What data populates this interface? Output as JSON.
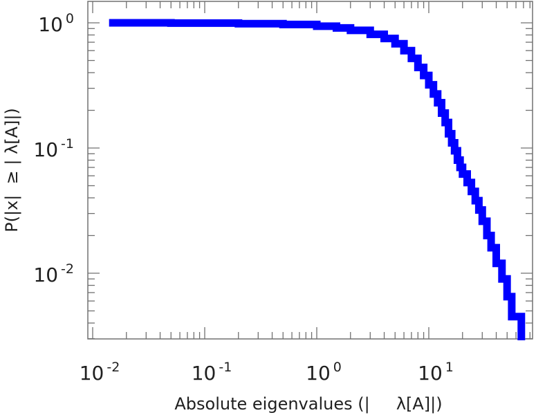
{
  "chart_data": {
    "type": "line",
    "xlabel": "Absolute eigenvalues (|     λ[A]|)",
    "ylabel": "P(|x|  ≥ | λ[A]|)",
    "x_scale": "log",
    "y_scale": "log",
    "xlim": [
      0.01,
      80
    ],
    "ylim": [
      0.003,
      1.3
    ],
    "grid": false,
    "x_ticks": [
      {
        "base": "10",
        "exp": "-2",
        "value": 0.01
      },
      {
        "base": "10",
        "exp": "-1",
        "value": 0.1
      },
      {
        "base": "10",
        "exp": "0",
        "value": 1
      },
      {
        "base": "10",
        "exp": "1",
        "value": 10
      }
    ],
    "y_ticks": [
      {
        "base": "10",
        "exp": "0",
        "value": 1
      },
      {
        "base": "10",
        "exp": "-1",
        "value": 0.1
      },
      {
        "base": "10",
        "exp": "-2",
        "value": 0.01
      }
    ],
    "series": [
      {
        "color": "#0000ff",
        "step": true,
        "x": [
          0.014,
          0.05,
          0.2,
          0.5,
          1.0,
          1.5,
          2.0,
          3.0,
          4.0,
          5.0,
          6.0,
          7.0,
          8.0,
          9.0,
          10.0,
          11.0,
          12.0,
          13.0,
          14.0,
          15.0,
          16.0,
          17.0,
          18.0,
          19.0,
          20.0,
          22.0,
          24.0,
          26.0,
          28.0,
          30.0,
          33.0,
          36.0,
          40.0,
          45.0,
          50.0,
          55.0,
          60.0,
          67.0
        ],
        "y": [
          1.0,
          0.995,
          0.985,
          0.97,
          0.94,
          0.91,
          0.87,
          0.81,
          0.75,
          0.68,
          0.6,
          0.52,
          0.44,
          0.38,
          0.32,
          0.27,
          0.23,
          0.19,
          0.16,
          0.13,
          0.11,
          0.095,
          0.08,
          0.07,
          0.062,
          0.053,
          0.045,
          0.038,
          0.032,
          0.026,
          0.02,
          0.016,
          0.012,
          0.009,
          0.0065,
          0.0045,
          0.0045,
          0.003
        ]
      }
    ]
  }
}
